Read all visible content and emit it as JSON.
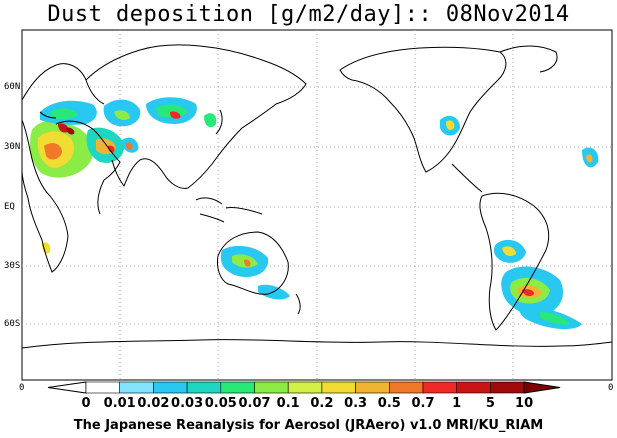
{
  "title": "Dust deposition [g/m2/day]:: 08Nov2014",
  "footer": "The Japanese Reanalysis for Aerosol (JRAero) v1.0 MRI/KU_RIAM",
  "lat_labels": [
    "60N",
    "30N",
    "EQ",
    "30S",
    "60S"
  ],
  "lon_edge_label": "0",
  "colorbar": {
    "labels": [
      "0",
      "0.01",
      "0.02",
      "0.03",
      "0.05",
      "0.07",
      "0.1",
      "0.2",
      "0.3",
      "0.5",
      "0.7",
      "1",
      "5",
      "10"
    ],
    "colors": [
      "#ffffff",
      "#ffffff",
      "#82e4ff",
      "#28c8f0",
      "#1ed7c0",
      "#28e878",
      "#8cec46",
      "#d2f046",
      "#f0dc32",
      "#f0b432",
      "#f07828",
      "#f02828",
      "#c81414",
      "#a00a0a",
      "#7d0000"
    ]
  },
  "map": {
    "projection": "cylindrical equidistant, 0 to 360E",
    "lat_lines": [
      60,
      30,
      0,
      -30,
      -60
    ],
    "colors": {
      "land_outline": "#000000",
      "grid": "#aaaaaa",
      "background": "#ffffff"
    }
  }
}
